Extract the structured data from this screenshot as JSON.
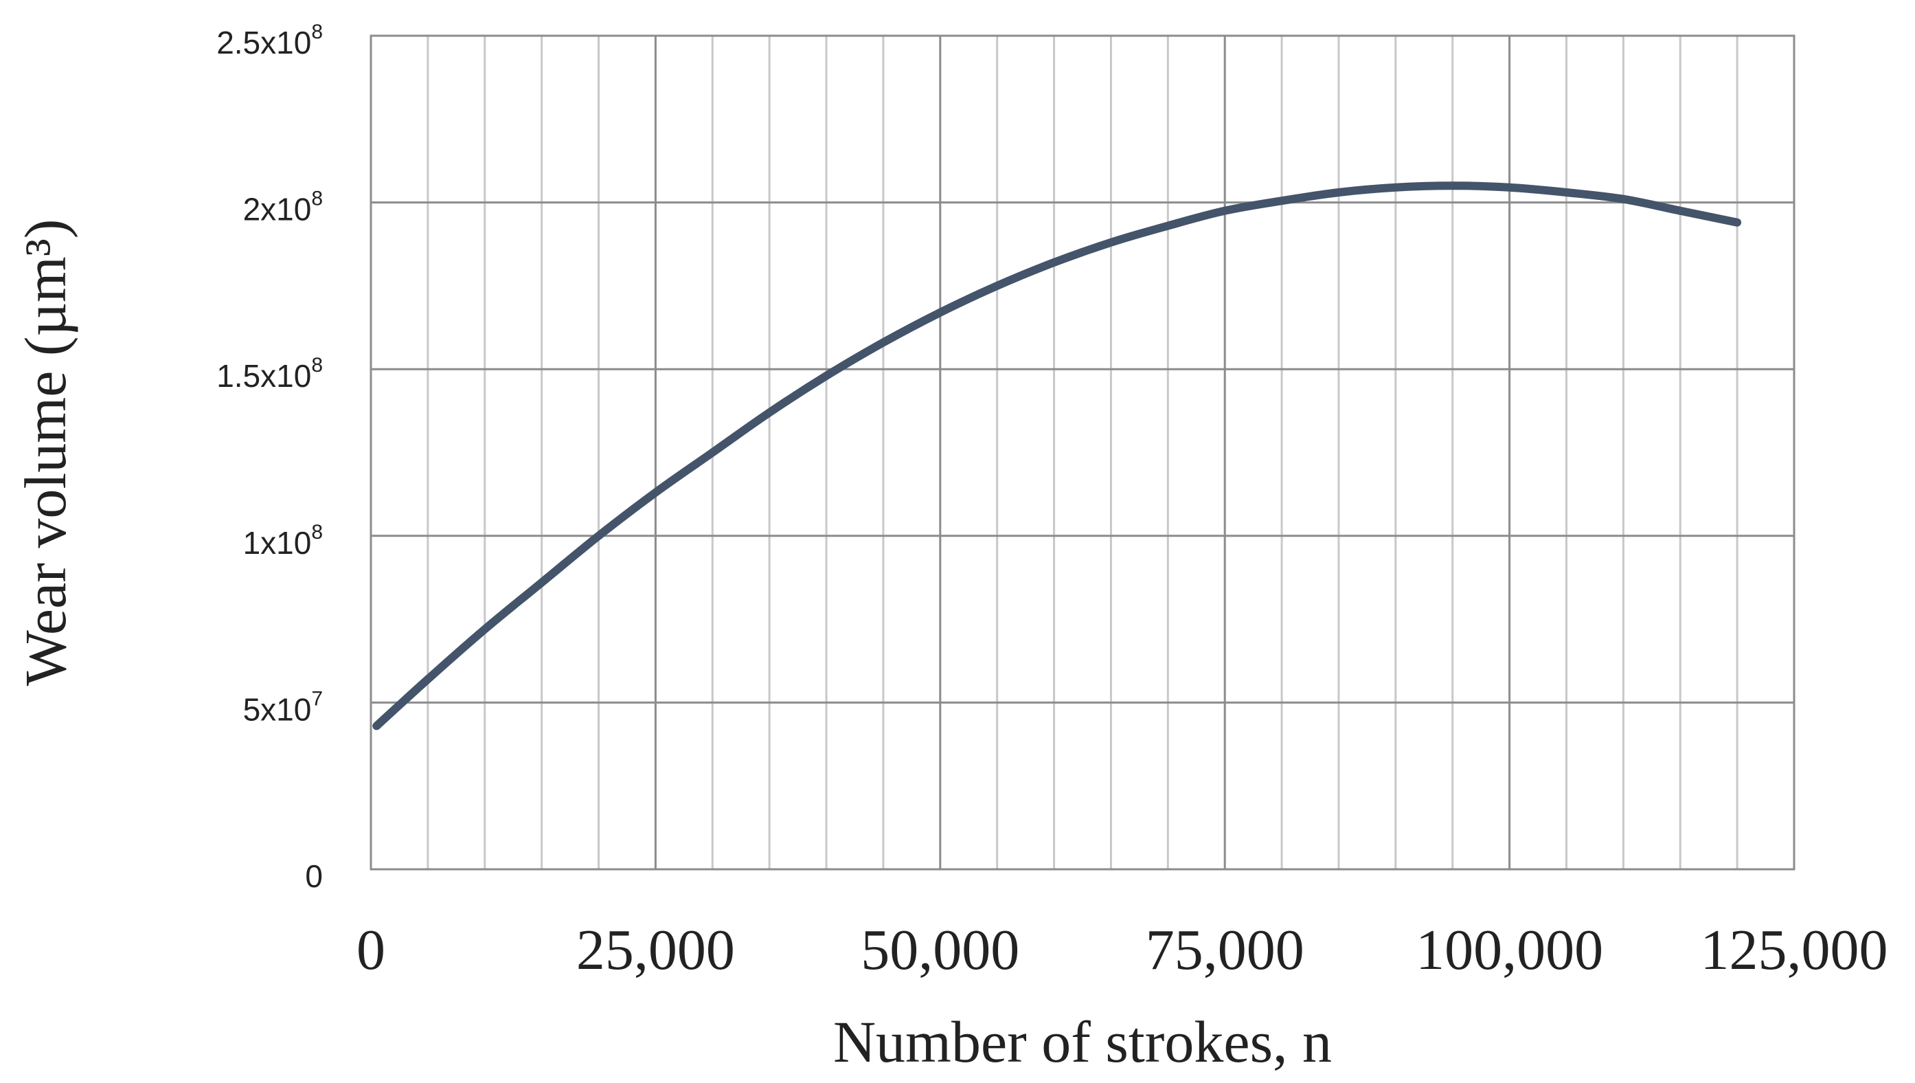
{
  "chart_data": {
    "type": "line",
    "title": "",
    "xlabel": "Number of strokes, n",
    "ylabel": "Wear volume (µm³)",
    "xlim": [
      0,
      125000
    ],
    "ylim": [
      0,
      250000000
    ],
    "x_ticks": [
      {
        "value": 0,
        "label": "0"
      },
      {
        "value": 25000,
        "label": "25,000"
      },
      {
        "value": 50000,
        "label": "50,000"
      },
      {
        "value": 75000,
        "label": "75,000"
      },
      {
        "value": 100000,
        "label": "100,000"
      },
      {
        "value": 125000,
        "label": "125,000"
      }
    ],
    "y_ticks": [
      {
        "value": 0,
        "mantissa": "0",
        "exponent": ""
      },
      {
        "value": 50000000,
        "mantissa": "5x10",
        "exponent": "7"
      },
      {
        "value": 100000000,
        "mantissa": "1x10",
        "exponent": "8"
      },
      {
        "value": 150000000,
        "mantissa": "1.5x10",
        "exponent": "8"
      },
      {
        "value": 200000000,
        "mantissa": "2x10",
        "exponent": "8"
      },
      {
        "value": 250000000,
        "mantissa": "2.5x10",
        "exponent": "8"
      }
    ],
    "x_minor_step": 5000,
    "grid": true,
    "legend": false,
    "series": [
      {
        "color": "#44546a",
        "x": [
          500,
          5000,
          10000,
          15000,
          20000,
          25000,
          30000,
          35000,
          40000,
          45000,
          50000,
          55000,
          60000,
          65000,
          70000,
          75000,
          80000,
          85000,
          90000,
          95000,
          100000,
          105000,
          110000,
          115000,
          120000
        ],
        "y": [
          43000000,
          57000000,
          72000000,
          86000000,
          100000000,
          113000000,
          125000000,
          137000000,
          148000000,
          158000000,
          167000000,
          175000000,
          182000000,
          188000000,
          193000000,
          197500000,
          200500000,
          203000000,
          204500000,
          205000000,
          204500000,
          203000000,
          201000000,
          197500000,
          194000000
        ]
      }
    ]
  }
}
